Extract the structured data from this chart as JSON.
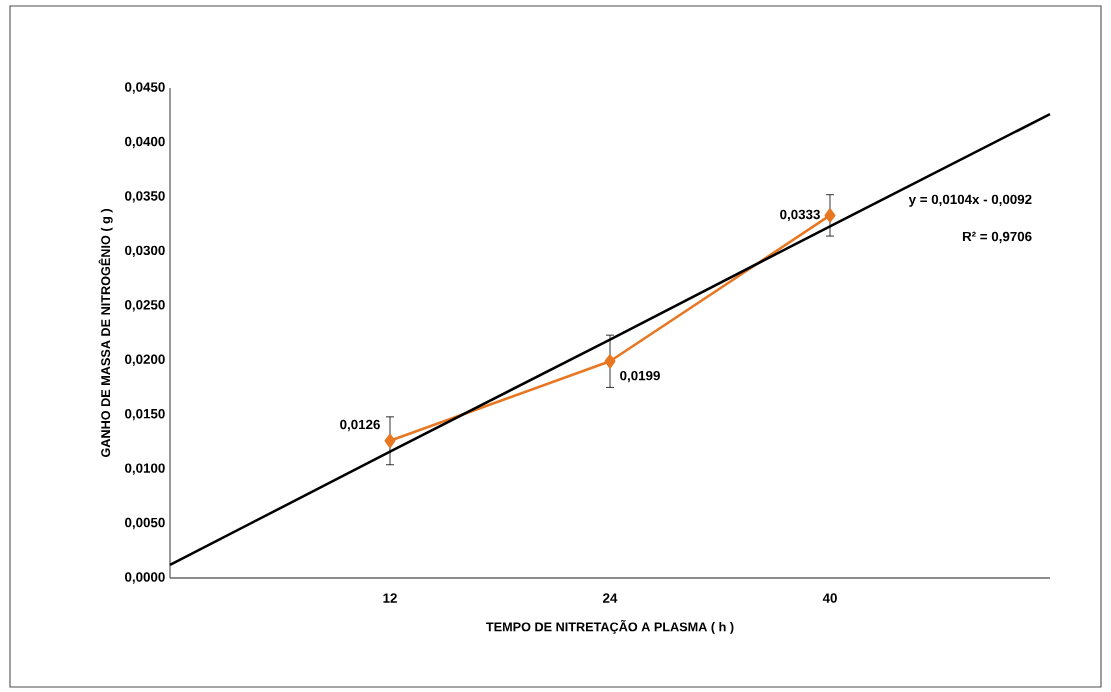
{
  "chart_data": {
    "type": "line",
    "xlabel": "TEMPO  DE NITRETAÇÃO A PLASMA ( h )",
    "ylabel": "GANHO DE MASSA DE NITROGÊNIO  ( g )",
    "categories": [
      null,
      "12",
      "24",
      "40",
      null
    ],
    "ylim": [
      0,
      0.045
    ],
    "yticks": [
      {
        "value": 0,
        "label": "0,0000"
      },
      {
        "value": 0.005,
        "label": "0,0050"
      },
      {
        "value": 0.01,
        "label": "0,0100"
      },
      {
        "value": 0.015,
        "label": "0,0150"
      },
      {
        "value": 0.02,
        "label": "0,0200"
      },
      {
        "value": 0.025,
        "label": "0,0250"
      },
      {
        "value": 0.03,
        "label": "0,0300"
      },
      {
        "value": 0.035,
        "label": "0,0350"
      },
      {
        "value": 0.04,
        "label": "0,0400"
      },
      {
        "value": 0.045,
        "label": "0,0450"
      }
    ],
    "grid": false,
    "series": [
      {
        "color": "#e87722",
        "values": [
          null,
          0.0126,
          0.0199,
          0.0333,
          null
        ],
        "errors": [
          null,
          0.0022,
          0.0024,
          0.0019,
          null
        ],
        "value_labels": [
          null,
          "0,0126",
          "0,0199",
          "0,0333",
          null
        ],
        "marker": "diamond",
        "line_style": "solid"
      },
      {
        "type": "line",
        "color": "#000000",
        "values": [
          0.0012,
          0.0116,
          0.0219,
          0.0323,
          0.0426
        ],
        "marker": "none",
        "line_style": "solid"
      }
    ],
    "annotations": [
      "y = 0,0104x - 0,0092",
      "R² = 0,9706"
    ]
  }
}
